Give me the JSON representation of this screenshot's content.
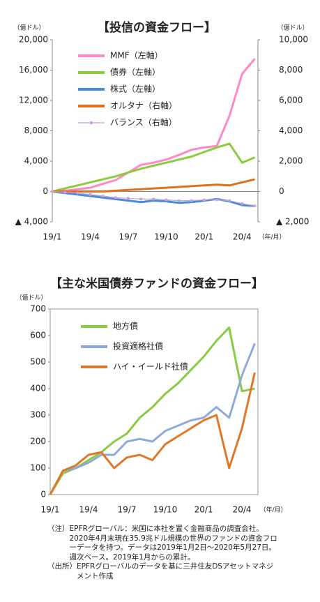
{
  "chart_data": [
    {
      "type": "line",
      "title": "【投信の資金フロー】",
      "y_label": "（億ドル）",
      "y2_label": "（億ドル）",
      "x_label": "（年/月）",
      "categories": [
        "19/1",
        null,
        null,
        "19/4",
        null,
        null,
        "19/7",
        null,
        null,
        "19/10",
        null,
        null,
        "20/1",
        null,
        null,
        "20/4",
        null
      ],
      "ylim": [
        -4000,
        20000
      ],
      "yticks": [
        {
          "value": -4000,
          "label": "▲ 4,000"
        },
        0,
        {
          "value": 4000,
          "label": "4,000"
        },
        {
          "value": 8000,
          "label": "8,000"
        },
        {
          "value": 12000,
          "label": "12,000"
        },
        {
          "value": 16000,
          "label": "16,000"
        },
        {
          "value": 20000,
          "label": "20,000"
        }
      ],
      "y2lim": [
        -2000,
        10000
      ],
      "y2ticks": [
        {
          "value": -2000,
          "label": "▲ 2,000"
        },
        0,
        {
          "value": 2000,
          "label": "2,000"
        },
        {
          "value": 4000,
          "label": "4,000"
        },
        {
          "value": 6000,
          "label": "6,000"
        },
        {
          "value": 8000,
          "label": "8,000"
        },
        {
          "value": 10000,
          "label": "10,000"
        }
      ],
      "series": [
        {
          "name": "MMF（左軸）",
          "color": "#ff88c8",
          "values": [
            0,
            100,
            300,
            500,
            1000,
            1500,
            2500,
            3500,
            3800,
            4200,
            4800,
            5500,
            5800,
            6000,
            10000,
            15500,
            17500
          ]
        },
        {
          "name": "債券（左軸）",
          "color": "#8ccc3c",
          "values": [
            0,
            400,
            800,
            1200,
            1600,
            2000,
            2500,
            3000,
            3400,
            3800,
            4200,
            4600,
            5200,
            5800,
            6300,
            3800,
            4500
          ]
        },
        {
          "name": "株式（左軸）",
          "color": "#4a8ad6",
          "values": [
            0,
            -200,
            -400,
            -600,
            -800,
            -1000,
            -1200,
            -1400,
            -1200,
            -1300,
            -1500,
            -1400,
            -1200,
            -1000,
            -1300,
            -1800,
            -1900
          ]
        },
        {
          "name": "オルタナ（右軸）",
          "color": "#e0701c",
          "axis": "y2",
          "values": [
            0,
            0,
            0,
            0,
            0,
            50,
            100,
            150,
            200,
            250,
            300,
            350,
            400,
            450,
            400,
            600,
            800
          ]
        },
        {
          "name": "バランス（右軸）",
          "color": "#c8a0dc",
          "axis": "y2",
          "marker": "square",
          "values": [
            0,
            -50,
            -100,
            -200,
            -300,
            -400,
            -450,
            -500,
            -500,
            -550,
            -600,
            -600,
            -550,
            -550,
            -600,
            -800,
            -950
          ]
        }
      ]
    },
    {
      "type": "line",
      "title": "【主な米国債券ファンドの資金フロー】",
      "y_label": "（億ドル）",
      "x_label": "（年/月）",
      "categories": [
        "19/1",
        null,
        null,
        "19/4",
        null,
        null,
        "19/7",
        null,
        null,
        "19/10",
        null,
        null,
        "20/1",
        null,
        null,
        "20/4",
        null
      ],
      "ylim": [
        0,
        700
      ],
      "yticks": [
        0,
        100,
        200,
        300,
        400,
        500,
        600,
        700
      ],
      "series": [
        {
          "name": "地方債",
          "color": "#88cc44",
          "values": [
            0,
            80,
            100,
            130,
            160,
            200,
            230,
            290,
            330,
            380,
            420,
            470,
            520,
            580,
            630,
            390,
            400
          ]
        },
        {
          "name": "投資適格社債",
          "color": "#8eaad8",
          "values": [
            0,
            90,
            100,
            120,
            150,
            150,
            200,
            210,
            200,
            240,
            260,
            280,
            290,
            330,
            290,
            450,
            570
          ]
        },
        {
          "name": "ハイ・イールド社債",
          "color": "#e07828",
          "values": [
            0,
            90,
            110,
            150,
            160,
            100,
            140,
            150,
            130,
            190,
            220,
            250,
            280,
            300,
            100,
            250,
            460
          ]
        }
      ]
    }
  ],
  "notes": [
    {
      "label": "（注）",
      "text": "EPFRグローバル：米国に本社を置く金融商品の調査会社。2020年4月末現在35.9兆ドル規模の世界のファンドの資金フローデータを持つ。データは2019年1月2日～2020年5月27日。週次ベース。2019年1月からの累計。"
    },
    {
      "label": "（出所）",
      "text": "EPFRグローバルのデータを基に三井住友DSアセットマネジメント作成"
    }
  ]
}
